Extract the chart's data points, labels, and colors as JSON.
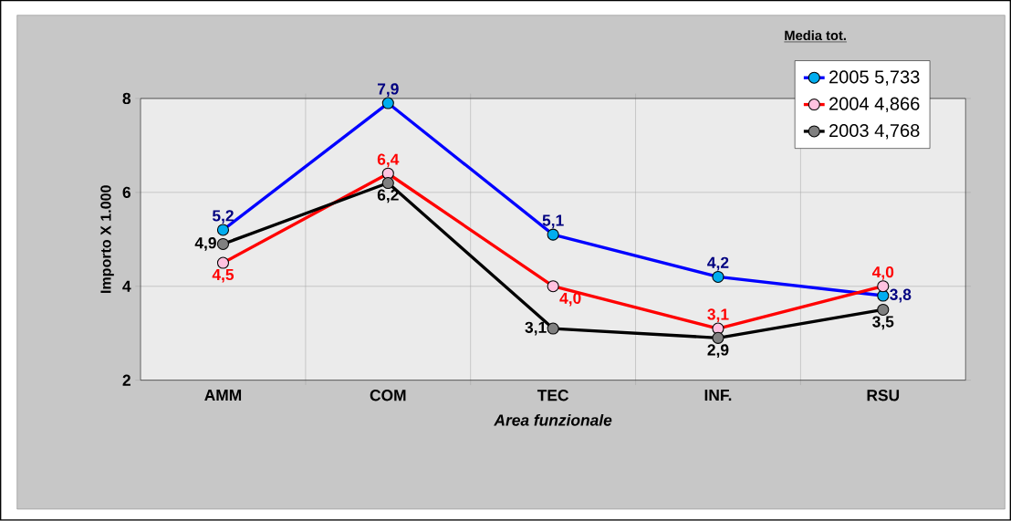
{
  "chart_data": {
    "type": "line",
    "xlabel": "Area funzionale",
    "ylabel": "Importo X 1.000",
    "legend_title": "Media tot.",
    "categories": [
      "AMM",
      "COM",
      "TEC",
      "INF.",
      "RSU"
    ],
    "series": [
      {
        "name": "2005   5,733",
        "color": "#0000ff",
        "values": [
          5.2,
          7.9,
          5.1,
          4.2,
          3.8
        ],
        "value_labels": [
          "5,2",
          "7,9",
          "5,1",
          "4,2",
          "3,8"
        ]
      },
      {
        "name": "2004   4,866",
        "color": "#ff0000",
        "values": [
          4.5,
          6.4,
          4.0,
          3.1,
          4.0
        ],
        "value_labels": [
          "4,5",
          "6,4",
          "4,0",
          "3,1",
          "4,0"
        ]
      },
      {
        "name": "2003   4,768",
        "color": "#000000",
        "values": [
          4.9,
          6.2,
          3.1,
          2.9,
          3.5
        ],
        "value_labels": [
          "4,9",
          "6,2",
          "3,1",
          "2,9",
          "3,5"
        ]
      }
    ],
    "ylim": [
      2,
      8
    ],
    "yticks": [
      2,
      4,
      6,
      8
    ],
    "grid": true,
    "legend": "top right",
    "marker": "circle",
    "line_style": "solid"
  }
}
